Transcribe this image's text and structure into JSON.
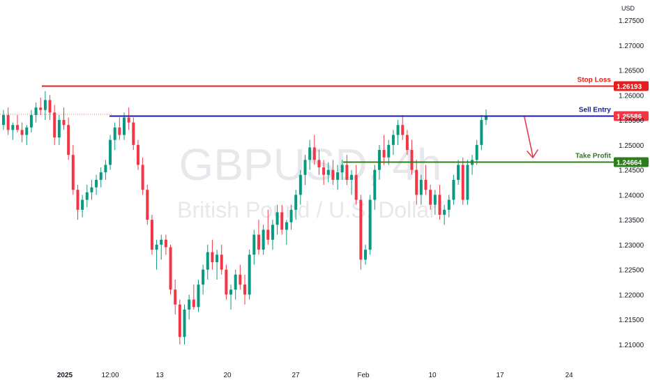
{
  "chart_data": {
    "type": "candlestick",
    "watermark": {
      "symbol": "GBPUSD, 4h",
      "description": "British Pound / U.S. Dollar"
    },
    "currency_label": "USD",
    "y_ticks": [
      "1.27500",
      "1.27000",
      "1.26500",
      "1.26000",
      "1.25500",
      "1.25000",
      "1.24500",
      "1.24000",
      "1.23500",
      "1.23000",
      "1.22500",
      "1.22000",
      "1.21500",
      "1.21000"
    ],
    "ylim": [
      1.2075,
      1.2775
    ],
    "x_ticks": [
      {
        "label": "2025",
        "bold": true,
        "date": "2025-01-01"
      },
      {
        "label": "12:00",
        "bold": false,
        "date": "2025-01-01 12:00"
      },
      {
        "label": "13",
        "bold": false,
        "date": "2025-01-13"
      },
      {
        "label": "20",
        "bold": false,
        "date": "2025-01-20"
      },
      {
        "label": "27",
        "bold": false,
        "date": "2025-01-27"
      },
      {
        "label": "Feb",
        "bold": false,
        "date": "2025-02-03"
      },
      {
        "label": "10",
        "bold": false,
        "date": "2025-02-10"
      },
      {
        "label": "17",
        "bold": false,
        "date": "2025-02-17"
      },
      {
        "label": "24",
        "bold": false,
        "date": "2025-02-24"
      }
    ],
    "levels": [
      {
        "name": "Stop Loss",
        "price": 1.26193,
        "price_label": "1.26193",
        "color": "#e81c1c",
        "label_color": "#e81c1c"
      },
      {
        "name": "Sell Entry",
        "price": 1.25586,
        "price_label": "1.25586",
        "color": "#1c1c9c",
        "label_color": "#1c1c9c",
        "badge_color": "#f23645"
      },
      {
        "name": "Take Profit",
        "price": 1.24664,
        "price_label": "1.24664",
        "color": "#2e7d1c",
        "label_color": "#2e7d1c"
      }
    ],
    "candles": [
      [
        1.254,
        1.257,
        1.253,
        1.256
      ],
      [
        1.256,
        1.2575,
        1.252,
        1.253
      ],
      [
        1.253,
        1.2545,
        1.251,
        1.254
      ],
      [
        1.254,
        1.256,
        1.2525,
        1.253
      ],
      [
        1.253,
        1.2545,
        1.2505,
        1.252
      ],
      [
        1.252,
        1.254,
        1.25,
        1.2535
      ],
      [
        1.2535,
        1.257,
        1.2525,
        1.256
      ],
      [
        1.256,
        1.2585,
        1.2545,
        1.2575
      ],
      [
        1.2575,
        1.2595,
        1.256,
        1.257
      ],
      [
        1.257,
        1.2608,
        1.255,
        1.259
      ],
      [
        1.259,
        1.26,
        1.255,
        1.2565
      ],
      [
        1.2565,
        1.258,
        1.25,
        1.2515
      ],
      [
        1.2515,
        1.256,
        1.25,
        1.255
      ],
      [
        1.255,
        1.2575,
        1.253,
        1.254
      ],
      [
        1.254,
        1.2555,
        1.247,
        1.248
      ],
      [
        1.248,
        1.25,
        1.24,
        1.241
      ],
      [
        1.241,
        1.242,
        1.235,
        1.237
      ],
      [
        1.237,
        1.24,
        1.2355,
        1.239
      ],
      [
        1.239,
        1.242,
        1.2375,
        1.2405
      ],
      [
        1.2405,
        1.243,
        1.239,
        1.2415
      ],
      [
        1.2415,
        1.244,
        1.24,
        1.243
      ],
      [
        1.243,
        1.2455,
        1.2415,
        1.2445
      ],
      [
        1.2445,
        1.247,
        1.243,
        1.246
      ],
      [
        1.246,
        1.252,
        1.245,
        1.251
      ],
      [
        1.251,
        1.2545,
        1.249,
        1.2535
      ],
      [
        1.2535,
        1.2555,
        1.251,
        1.252
      ],
      [
        1.252,
        1.2565,
        1.251,
        1.2555
      ],
      [
        1.2555,
        1.2575,
        1.253,
        1.2545
      ],
      [
        1.2545,
        1.2555,
        1.249,
        1.25
      ],
      [
        1.25,
        1.251,
        1.245,
        1.246
      ],
      [
        1.246,
        1.2475,
        1.24,
        1.241
      ],
      [
        1.241,
        1.242,
        1.234,
        1.235
      ],
      [
        1.235,
        1.236,
        1.228,
        1.229
      ],
      [
        1.229,
        1.231,
        1.225,
        1.23
      ],
      [
        1.23,
        1.232,
        1.227,
        1.231
      ],
      [
        1.231,
        1.232,
        1.228,
        1.2295
      ],
      [
        1.2295,
        1.23,
        1.22,
        1.221
      ],
      [
        1.221,
        1.223,
        1.216,
        1.218
      ],
      [
        1.218,
        1.219,
        1.21,
        1.2115
      ],
      [
        1.2115,
        1.218,
        1.21,
        1.217
      ],
      [
        1.217,
        1.22,
        1.215,
        1.219
      ],
      [
        1.219,
        1.222,
        1.217,
        1.2175
      ],
      [
        1.2175,
        1.223,
        1.2165,
        1.222
      ],
      [
        1.222,
        1.226,
        1.22,
        1.225
      ],
      [
        1.225,
        1.23,
        1.223,
        1.2285
      ],
      [
        1.2285,
        1.231,
        1.225,
        1.2265
      ],
      [
        1.2265,
        1.229,
        1.223,
        1.228
      ],
      [
        1.228,
        1.23,
        1.224,
        1.225
      ],
      [
        1.225,
        1.226,
        1.219,
        1.22
      ],
      [
        1.22,
        1.222,
        1.217,
        1.221
      ],
      [
        1.221,
        1.225,
        1.219,
        1.224
      ],
      [
        1.224,
        1.226,
        1.221,
        1.222
      ],
      [
        1.222,
        1.224,
        1.218,
        1.22
      ],
      [
        1.22,
        1.229,
        1.219,
        1.228
      ],
      [
        1.228,
        1.233,
        1.226,
        1.232
      ],
      [
        1.232,
        1.235,
        1.228,
        1.229
      ],
      [
        1.229,
        1.234,
        1.228,
        1.233
      ],
      [
        1.233,
        1.237,
        1.23,
        1.231
      ],
      [
        1.231,
        1.235,
        1.229,
        1.234
      ],
      [
        1.234,
        1.238,
        1.232,
        1.2365
      ],
      [
        1.2365,
        1.238,
        1.232,
        1.233
      ],
      [
        1.233,
        1.235,
        1.23,
        1.2345
      ],
      [
        1.2345,
        1.238,
        1.233,
        1.237
      ],
      [
        1.237,
        1.241,
        1.235,
        1.24
      ],
      [
        1.24,
        1.245,
        1.238,
        1.244
      ],
      [
        1.244,
        1.248,
        1.242,
        1.247
      ],
      [
        1.247,
        1.251,
        1.245,
        1.2495
      ],
      [
        1.2495,
        1.252,
        1.246,
        1.247
      ],
      [
        1.247,
        1.249,
        1.244,
        1.2455
      ],
      [
        1.2455,
        1.247,
        1.242,
        1.244
      ],
      [
        1.244,
        1.2465,
        1.2425,
        1.245
      ],
      [
        1.245,
        1.247,
        1.242,
        1.243
      ],
      [
        1.243,
        1.246,
        1.241,
        1.2445
      ],
      [
        1.2445,
        1.247,
        1.243,
        1.246
      ],
      [
        1.246,
        1.248,
        1.242,
        1.243
      ],
      [
        1.243,
        1.245,
        1.24,
        1.244
      ],
      [
        1.244,
        1.246,
        1.238,
        1.239
      ],
      [
        1.239,
        1.24,
        1.225,
        1.227
      ],
      [
        1.227,
        1.23,
        1.226,
        1.229
      ],
      [
        1.229,
        1.24,
        1.228,
        1.239
      ],
      [
        1.239,
        1.246,
        1.237,
        1.245
      ],
      [
        1.245,
        1.25,
        1.243,
        1.249
      ],
      [
        1.249,
        1.252,
        1.246,
        1.2475
      ],
      [
        1.2475,
        1.251,
        1.246,
        1.25
      ],
      [
        1.25,
        1.253,
        1.248,
        1.252
      ],
      [
        1.252,
        1.255,
        1.25,
        1.254
      ],
      [
        1.254,
        1.256,
        1.251,
        1.252
      ],
      [
        1.252,
        1.253,
        1.248,
        1.249
      ],
      [
        1.249,
        1.251,
        1.244,
        1.245
      ],
      [
        1.245,
        1.247,
        1.238,
        1.24
      ],
      [
        1.24,
        1.244,
        1.238,
        1.243
      ],
      [
        1.243,
        1.246,
        1.24,
        1.241
      ],
      [
        1.241,
        1.242,
        1.237,
        1.238
      ],
      [
        1.238,
        1.241,
        1.236,
        1.24
      ],
      [
        1.24,
        1.242,
        1.235,
        1.236
      ],
      [
        1.236,
        1.238,
        1.234,
        1.237
      ],
      [
        1.237,
        1.24,
        1.2355,
        1.239
      ],
      [
        1.239,
        1.244,
        1.238,
        1.243
      ],
      [
        1.243,
        1.247,
        1.242,
        1.246
      ],
      [
        1.246,
        1.2475,
        1.238,
        1.239
      ],
      [
        1.239,
        1.247,
        1.238,
        1.246
      ],
      [
        1.246,
        1.248,
        1.244,
        1.247
      ],
      [
        1.247,
        1.251,
        1.246,
        1.25
      ],
      [
        1.25,
        1.256,
        1.249,
        1.255
      ],
      [
        1.255,
        1.2571,
        1.254,
        1.2559
      ]
    ]
  }
}
